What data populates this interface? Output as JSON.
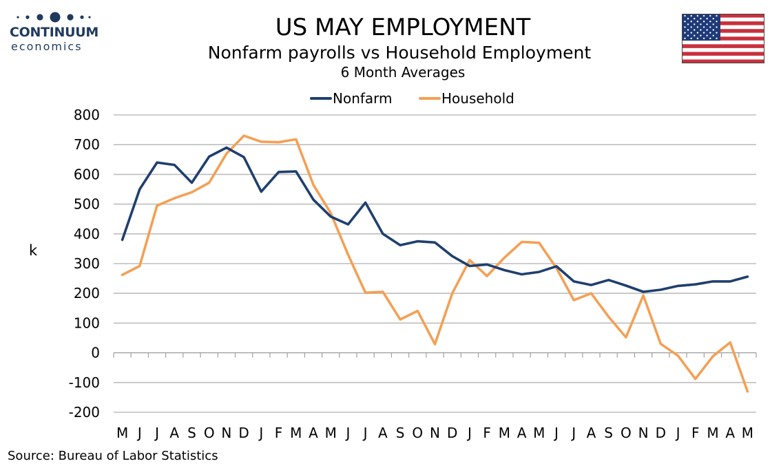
{
  "header": {
    "title": "US MAY EMPLOYMENT",
    "subtitle": "Nonfarm payrolls vs Household Employment",
    "subtitle2": "6 Month Averages"
  },
  "logo": {
    "word1": "CONTINUUM",
    "word2": "economics",
    "color": "#1f3a5f"
  },
  "flag": {
    "icon": "us-flag-icon"
  },
  "source": "Source: Bureau of Labor Statistics",
  "chart_data": {
    "type": "line",
    "title": "US MAY EMPLOYMENT",
    "ylabel": "k",
    "xlabel": "",
    "ylim": [
      -200,
      800
    ],
    "yticks": [
      800,
      700,
      600,
      500,
      400,
      300,
      200,
      100,
      0,
      -100,
      -200
    ],
    "grid": true,
    "legend": "top-center",
    "categories": [
      "M",
      "J",
      "J",
      "A",
      "S",
      "O",
      "N",
      "D",
      "J",
      "F",
      "M",
      "A",
      "M",
      "J",
      "J",
      "A",
      "S",
      "O",
      "N",
      "D",
      "J",
      "F",
      "M",
      "A",
      "M",
      "J",
      "J",
      "A",
      "S",
      "O",
      "N",
      "D",
      "J",
      "F",
      "M",
      "A",
      "M"
    ],
    "series": [
      {
        "name": "Nonfarm",
        "color": "#1f3f6e",
        "values": [
          380,
          550,
          640,
          632,
          572,
          660,
          690,
          658,
          542,
          608,
          610,
          515,
          458,
          432,
          505,
          400,
          362,
          375,
          371,
          325,
          292,
          297,
          278,
          264,
          272,
          291,
          240,
          228,
          245,
          226,
          205,
          212,
          225,
          230,
          240,
          240,
          256
        ]
      },
      {
        "name": "Household",
        "color": "#f4a055",
        "values": [
          262,
          292,
          495,
          520,
          540,
          572,
          670,
          730,
          710,
          708,
          718,
          565,
          470,
          330,
          202,
          205,
          112,
          141,
          29,
          200,
          312,
          258,
          320,
          373,
          370,
          285,
          177,
          200,
          121,
          52,
          193,
          30,
          -10,
          -88,
          -12,
          35,
          -130
        ]
      }
    ]
  }
}
